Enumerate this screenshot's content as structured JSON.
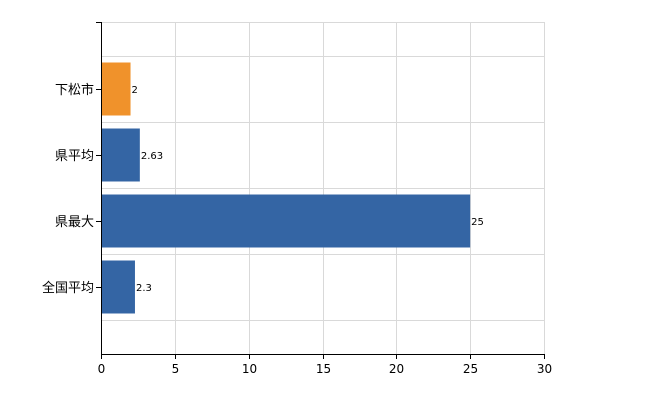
{
  "chart_data": {
    "type": "bar",
    "orientation": "horizontal",
    "categories": [
      "下松市",
      "県平均",
      "県最大",
      "全国平均"
    ],
    "values": [
      2,
      2.63,
      25,
      2.3
    ],
    "value_labels": [
      "2",
      "2.63",
      "25",
      "2.3"
    ],
    "bar_colors": [
      "#f0922b",
      "#3465a4",
      "#3465a4",
      "#3465a4"
    ],
    "xlim": [
      0,
      30
    ],
    "xticks": [
      0,
      5,
      10,
      15,
      20,
      25,
      30
    ],
    "xtick_labels": [
      "0",
      "5",
      "10",
      "15",
      "20",
      "25",
      "30"
    ],
    "grid": true,
    "title": "",
    "xlabel": "",
    "ylabel": ""
  }
}
